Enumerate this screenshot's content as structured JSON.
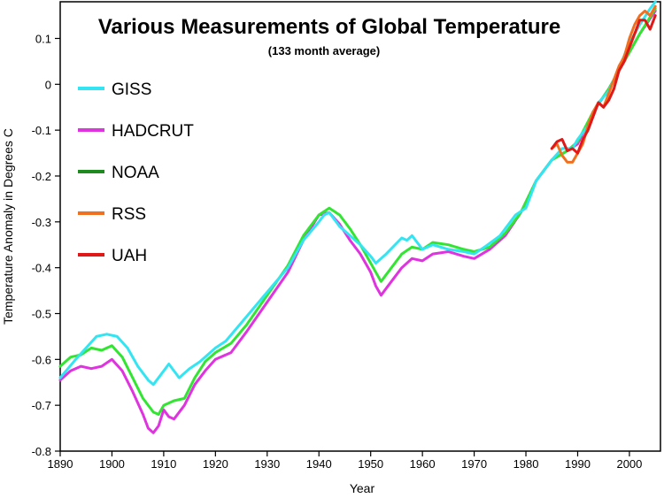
{
  "chart_data": {
    "type": "line",
    "title": "Various Measurements of Global Temperature",
    "subtitle": "(133 month average)",
    "xlabel": "Year",
    "ylabel": "Temperature Anomaly in Degrees C",
    "xlim": [
      1890,
      2006
    ],
    "ylim": [
      -0.8,
      0.18
    ],
    "x_ticks": [
      1890,
      1900,
      1910,
      1920,
      1930,
      1940,
      1950,
      1960,
      1970,
      1980,
      1990,
      2000
    ],
    "y_ticks": [
      0.1,
      0,
      -0.1,
      -0.2,
      -0.3,
      -0.4,
      -0.5,
      -0.6,
      -0.7,
      -0.8
    ],
    "y_tick_labels": [
      "0.1",
      "0",
      "-0.1",
      "-0.2",
      "-0.3",
      "-0.4",
      "-0.5",
      "-0.6",
      "-0.7",
      "-0.8"
    ],
    "grid": false,
    "legend_position": "left",
    "series": [
      {
        "name": "GISS",
        "color": "#33e5f2",
        "x": [
          1890,
          1893,
          1895,
          1897,
          1899,
          1901,
          1903,
          1905,
          1907,
          1908,
          1910,
          1911,
          1913,
          1915,
          1917,
          1920,
          1922,
          1925,
          1928,
          1931,
          1934,
          1937,
          1940,
          1941,
          1942,
          1943,
          1944,
          1946,
          1948,
          1950,
          1951,
          1953,
          1956,
          1957,
          1958,
          1960,
          1962,
          1965,
          1968,
          1970,
          1972,
          1975,
          1978,
          1980,
          1982,
          1985,
          1987,
          1989,
          1990,
          1992,
          1994,
          1996,
          1998,
          2000,
          2002,
          2004,
          2005
        ],
        "y": [
          -0.64,
          -0.6,
          -0.575,
          -0.55,
          -0.545,
          -0.55,
          -0.575,
          -0.615,
          -0.645,
          -0.655,
          -0.625,
          -0.61,
          -0.64,
          -0.62,
          -0.605,
          -0.575,
          -0.56,
          -0.52,
          -0.48,
          -0.44,
          -0.4,
          -0.34,
          -0.3,
          -0.285,
          -0.28,
          -0.295,
          -0.31,
          -0.33,
          -0.35,
          -0.375,
          -0.39,
          -0.37,
          -0.335,
          -0.34,
          -0.33,
          -0.36,
          -0.35,
          -0.36,
          -0.365,
          -0.37,
          -0.355,
          -0.33,
          -0.285,
          -0.27,
          -0.21,
          -0.165,
          -0.14,
          -0.14,
          -0.12,
          -0.09,
          -0.04,
          -0.015,
          0.035,
          0.09,
          0.13,
          0.165,
          0.18
        ]
      },
      {
        "name": "HADCRUT",
        "color": "#e033e0",
        "x": [
          1890,
          1892,
          1894,
          1896,
          1898,
          1900,
          1902,
          1904,
          1906,
          1907,
          1908,
          1909,
          1910,
          1911,
          1912,
          1914,
          1916,
          1918,
          1920,
          1923,
          1926,
          1930,
          1934,
          1937,
          1940,
          1942,
          1944,
          1946,
          1948,
          1950,
          1951,
          1952,
          1954,
          1956,
          1958,
          1960,
          1962,
          1965,
          1968,
          1970,
          1973,
          1976,
          1979,
          1982,
          1985,
          1988,
          1990,
          1993,
          1996,
          1999,
          2002,
          2005
        ],
        "y": [
          -0.645,
          -0.625,
          -0.615,
          -0.62,
          -0.615,
          -0.6,
          -0.625,
          -0.67,
          -0.72,
          -0.75,
          -0.76,
          -0.745,
          -0.71,
          -0.725,
          -0.73,
          -0.7,
          -0.655,
          -0.625,
          -0.6,
          -0.585,
          -0.54,
          -0.475,
          -0.41,
          -0.34,
          -0.285,
          -0.28,
          -0.305,
          -0.34,
          -0.37,
          -0.41,
          -0.44,
          -0.46,
          -0.43,
          -0.4,
          -0.38,
          -0.385,
          -0.37,
          -0.365,
          -0.375,
          -0.38,
          -0.36,
          -0.33,
          -0.28,
          -0.21,
          -0.165,
          -0.145,
          -0.13,
          -0.06,
          -0.01,
          0.05,
          0.11,
          0.16
        ]
      },
      {
        "name": "NOAA",
        "color": "#1f8a1f",
        "x": [
          1890,
          1892,
          1894,
          1896,
          1898,
          1900,
          1902,
          1904,
          1906,
          1908,
          1909,
          1910,
          1912,
          1914,
          1916,
          1918,
          1920,
          1923,
          1926,
          1930,
          1934,
          1937,
          1940,
          1942,
          1944,
          1946,
          1948,
          1950,
          1951,
          1952,
          1954,
          1956,
          1958,
          1960,
          1962,
          1965,
          1968,
          1970,
          1973,
          1976,
          1979,
          1982,
          1985,
          1988,
          1990,
          1993,
          1996,
          1999,
          2002,
          2005
        ],
        "y": [
          -0.615,
          -0.595,
          -0.59,
          -0.575,
          -0.58,
          -0.57,
          -0.595,
          -0.64,
          -0.685,
          -0.715,
          -0.72,
          -0.7,
          -0.69,
          -0.685,
          -0.64,
          -0.605,
          -0.585,
          -0.565,
          -0.525,
          -0.46,
          -0.395,
          -0.33,
          -0.285,
          -0.27,
          -0.285,
          -0.315,
          -0.35,
          -0.39,
          -0.41,
          -0.43,
          -0.4,
          -0.37,
          -0.355,
          -0.36,
          -0.345,
          -0.35,
          -0.36,
          -0.365,
          -0.355,
          -0.325,
          -0.28,
          -0.21,
          -0.165,
          -0.145,
          -0.125,
          -0.06,
          -0.01,
          0.05,
          0.11,
          0.165
        ]
      },
      {
        "name": "RSS",
        "color": "#f07020",
        "x": [
          1985,
          1986,
          1987,
          1988,
          1989,
          1990,
          1991,
          1992,
          1993,
          1994,
          1995,
          1996,
          1997,
          1998,
          1999,
          2000,
          2001,
          2002,
          2003,
          2004,
          2005
        ],
        "y": [
          -0.14,
          -0.13,
          -0.155,
          -0.17,
          -0.17,
          -0.15,
          -0.13,
          -0.09,
          -0.06,
          -0.04,
          -0.05,
          -0.02,
          0.01,
          0.04,
          0.06,
          0.1,
          0.13,
          0.15,
          0.16,
          0.15,
          0.17
        ]
      },
      {
        "name": "UAH",
        "color": "#e01818",
        "x": [
          1985,
          1986,
          1987,
          1988,
          1989,
          1990,
          1991,
          1992,
          1993,
          1994,
          1995,
          1996,
          1997,
          1998,
          1999,
          2000,
          2001,
          2002,
          2003,
          2004,
          2005
        ],
        "y": [
          -0.14,
          -0.125,
          -0.12,
          -0.145,
          -0.14,
          -0.15,
          -0.12,
          -0.1,
          -0.07,
          -0.04,
          -0.05,
          -0.035,
          -0.01,
          0.03,
          0.05,
          0.08,
          0.11,
          0.14,
          0.14,
          0.12,
          0.15
        ]
      }
    ]
  }
}
